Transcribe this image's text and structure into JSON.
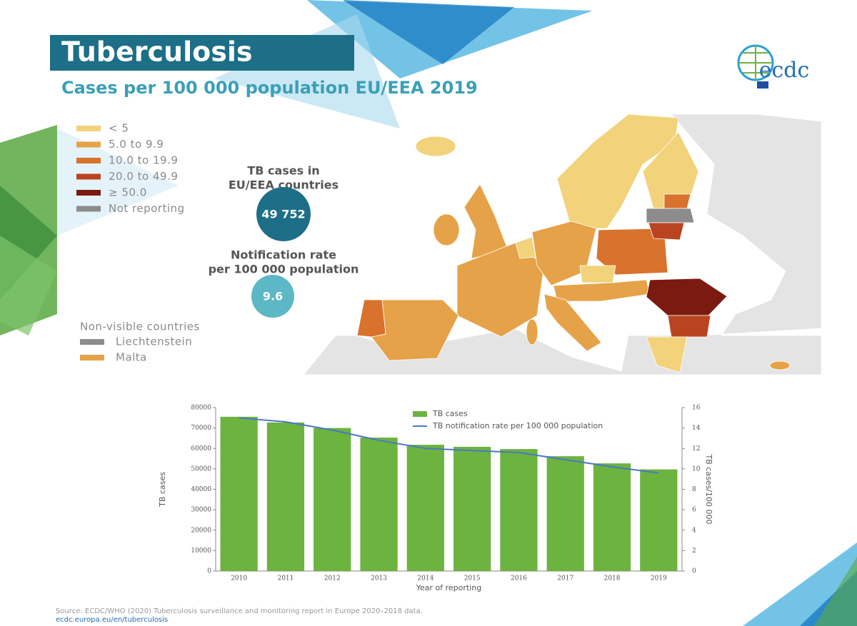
{
  "header": {
    "title": "Tuberculosis",
    "subtitle": "Cases per 100 000 population EU/EEA 2019",
    "logo": "ecdc"
  },
  "map_legend": {
    "items": [
      {
        "label": "< 5",
        "color": "#f2d27a"
      },
      {
        "label": "5.0 to 9.9",
        "color": "#e6a248"
      },
      {
        "label": "10.0 to 19.9",
        "color": "#d9722c"
      },
      {
        "label": "20.0 to 49.9",
        "color": "#bb4420"
      },
      {
        "label": "≥ 50.0",
        "color": "#7b1a10"
      },
      {
        "label": "Not reporting",
        "color": "#8c8c8c"
      }
    ]
  },
  "stats": {
    "cases_label": [
      "TB cases in",
      "EU/EEA countries"
    ],
    "cases_value": "49 752",
    "rate_label": [
      "Notification rate",
      "per 100 000 population"
    ],
    "rate_value": "9.6"
  },
  "non_visible": {
    "title": "Non-visible countries",
    "items": [
      {
        "label": "Liechtenstein",
        "color": "#8c8c8c"
      },
      {
        "label": "Malta",
        "color": "#e6a248"
      }
    ]
  },
  "chart_data": {
    "type": "bar",
    "categories": [
      "2010",
      "2011",
      "2012",
      "2013",
      "2014",
      "2015",
      "2016",
      "2017",
      "2018",
      "2019"
    ],
    "series": [
      {
        "name": "TB cases",
        "color": "#6cb33f",
        "type": "bar",
        "values": [
          75500,
          72700,
          70000,
          65300,
          61800,
          60800,
          59700,
          56200,
          52700,
          49752
        ]
      },
      {
        "name": "TB notification rate per 100 000 population",
        "color": "#4a78c8",
        "type": "line",
        "axis": "y2",
        "values": [
          15.0,
          14.6,
          13.8,
          12.8,
          12.0,
          11.8,
          11.6,
          10.9,
          10.2,
          9.6
        ]
      }
    ],
    "x_label": "Year of reporting",
    "y_label": "TB cases",
    "y2_label": "TB cases/100 000",
    "ylim": [
      0,
      80000
    ],
    "yticks": [
      0,
      10000,
      20000,
      30000,
      40000,
      50000,
      60000,
      70000,
      80000
    ],
    "y2lim": [
      0,
      16
    ],
    "y2ticks": [
      0,
      2,
      4,
      6,
      8,
      10,
      12,
      14,
      16
    ]
  },
  "footer": {
    "source": "Source: ECDC/WHO (2020) Tuberculosis surveillance and monitoring report in Europe 2020–2018 data.",
    "url": "ecdc.europa.eu/en/tuberculosis"
  }
}
